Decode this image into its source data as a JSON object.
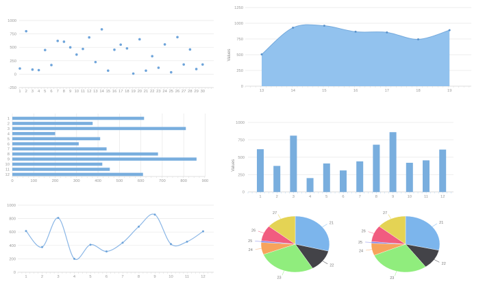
{
  "page": {
    "background": "#ffffff"
  },
  "palette": [
    "#7cb5ec",
    "#434348",
    "#90ed7d",
    "#f7a35c",
    "#8085e9",
    "#f15c80",
    "#e4d354"
  ],
  "chart_data": [
    {
      "name": "scatter",
      "type": "scatter",
      "x": [
        1,
        2,
        3,
        4,
        5,
        6,
        7,
        8,
        9,
        10,
        11,
        12,
        13,
        14,
        15,
        16,
        17,
        18,
        19,
        20,
        21,
        22,
        23,
        24,
        25,
        26,
        27,
        28,
        29,
        30
      ],
      "values": [
        105,
        800,
        85,
        75,
        450,
        170,
        620,
        605,
        500,
        365,
        470,
        685,
        225,
        835,
        65,
        455,
        550,
        480,
        10,
        650,
        65,
        335,
        120,
        555,
        35,
        690,
        180,
        460,
        95,
        180
      ],
      "yticks": [
        1000,
        750,
        500,
        250,
        0,
        -250
      ],
      "ylim": [
        -250,
        1000
      ],
      "title": "",
      "xlabel": "",
      "ylabel": "",
      "grid": true,
      "color": "#6ea4da"
    },
    {
      "name": "area",
      "type": "area",
      "categories": [
        13,
        14,
        15,
        16,
        17,
        18,
        19
      ],
      "values": [
        505,
        930,
        960,
        865,
        855,
        745,
        890
      ],
      "yticks": [
        1250,
        1000,
        750,
        500,
        250,
        0
      ],
      "ylim": [
        0,
        1250
      ],
      "title": "",
      "xlabel": "",
      "ylabel": "Values",
      "grid": true,
      "fill": "#92c2ee",
      "stroke": "#74a9dc",
      "marker": "#5b93cc"
    },
    {
      "name": "bar-horizontal",
      "type": "bar",
      "orientation": "horizontal",
      "categories": [
        1,
        2,
        3,
        4,
        5,
        6,
        7,
        8,
        9,
        10,
        11,
        12
      ],
      "values": [
        615,
        375,
        810,
        200,
        410,
        310,
        440,
        680,
        860,
        420,
        455,
        610
      ],
      "xticks": [
        0,
        100,
        200,
        300,
        400,
        500,
        600,
        700,
        800,
        900
      ],
      "xlim": [
        0,
        900
      ],
      "title": "",
      "xlabel": "",
      "ylabel": "",
      "grid": true,
      "color": "#79aede"
    },
    {
      "name": "column",
      "type": "bar",
      "orientation": "vertical",
      "categories": [
        1,
        2,
        3,
        4,
        5,
        6,
        7,
        8,
        9,
        10,
        11,
        12
      ],
      "values": [
        615,
        375,
        810,
        200,
        410,
        310,
        440,
        680,
        860,
        420,
        455,
        610
      ],
      "yticks": [
        1000,
        750,
        500,
        250,
        0
      ],
      "ylim": [
        0,
        1000
      ],
      "title": "",
      "xlabel": "",
      "ylabel": "Values",
      "grid": true,
      "color": "#79aede"
    },
    {
      "name": "line",
      "type": "line",
      "categories": [
        1,
        2,
        3,
        4,
        5,
        6,
        7,
        8,
        9,
        10,
        11,
        12
      ],
      "values": [
        615,
        375,
        810,
        200,
        410,
        310,
        440,
        680,
        860,
        420,
        455,
        610
      ],
      "yticks": [
        1000,
        800,
        600,
        400,
        200,
        0
      ],
      "ylim": [
        0,
        1000
      ],
      "title": "",
      "xlabel": "",
      "ylabel": "",
      "grid": true,
      "stroke": "#8ab6e6",
      "marker": "#6ea4da"
    },
    {
      "name": "pie-left",
      "type": "pie",
      "labels": [
        "21",
        "22",
        "23",
        "24",
        "25",
        "26",
        "27"
      ],
      "values": [
        29,
        12.5,
        27.5,
        7,
        1,
        9,
        14
      ],
      "colors": [
        "#7cb5ec",
        "#434348",
        "#90ed7d",
        "#f7a35c",
        "#8085e9",
        "#f15c80",
        "#e4d354"
      ]
    },
    {
      "name": "pie-right",
      "type": "pie",
      "labels": [
        "21",
        "22",
        "23",
        "24",
        "25",
        "26",
        "27"
      ],
      "values": [
        28.5,
        11.5,
        28.5,
        7,
        1,
        9.5,
        14
      ],
      "colors": [
        "#7cb5ec",
        "#434348",
        "#90ed7d",
        "#f7a35c",
        "#8085e9",
        "#f15c80",
        "#e4d354"
      ]
    }
  ]
}
